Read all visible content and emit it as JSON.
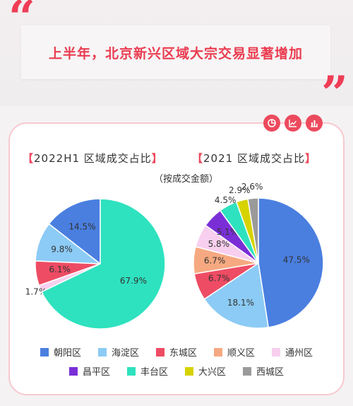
{
  "headline": "上半年，北京新兴区域大宗交易显著增加",
  "quote_open": "“",
  "quote_close": "”",
  "toolbar": {
    "icons": [
      "pie-chart-icon",
      "line-chart-icon",
      "bar-chart-icon"
    ]
  },
  "left_chart_title": "2022H1 区域成交占比",
  "left_chart_subtitle": "（按成交金额）",
  "right_chart_title": "2021 区域成交占比",
  "bracket_open": "【",
  "bracket_close": "】",
  "colors": {
    "朝阳区": "#4a7fe0",
    "海淀区": "#8ccbf5",
    "东城区": "#ee4c64",
    "顺义区": "#f6a981",
    "通州区": "#f8cfee",
    "昌平区": "#7a2fd6",
    "丰台区": "#2ee2bf",
    "大兴区": "#d7d300",
    "西城区": "#9a9a9a"
  },
  "chart_data": [
    {
      "type": "pie",
      "title": "2022H1 区域成交占比",
      "subtitle": "（按成交金额）",
      "unit": "%",
      "slices": [
        {
          "name": "朝阳区",
          "value": 14.5,
          "label": "14.5%"
        },
        {
          "name": "海淀区",
          "value": 9.8,
          "label": "9.8%"
        },
        {
          "name": "东城区",
          "value": 6.1,
          "label": "6.1%"
        },
        {
          "name": "通州区",
          "value": 1.7,
          "label": "1.7%"
        },
        {
          "name": "丰台区",
          "value": 67.9,
          "label": "67.9%"
        }
      ]
    },
    {
      "type": "pie",
      "title": "2021 区域成交占比",
      "unit": "%",
      "slices": [
        {
          "name": "朝阳区",
          "value": 47.5,
          "label": "47.5%"
        },
        {
          "name": "海淀区",
          "value": 18.1,
          "label": "18.1%"
        },
        {
          "name": "东城区",
          "value": 6.7,
          "label": "6.7%"
        },
        {
          "name": "顺义区",
          "value": 6.7,
          "label": "6.7%"
        },
        {
          "name": "通州区",
          "value": 5.8,
          "label": "5.8%"
        },
        {
          "name": "昌平区",
          "value": 5.1,
          "label": "5.1%"
        },
        {
          "name": "丰台区",
          "value": 4.5,
          "label": "4.5%"
        },
        {
          "name": "大兴区",
          "value": 2.9,
          "label": "2.9%"
        },
        {
          "name": "西城区",
          "value": 2.6,
          "label": "2.6%"
        }
      ]
    }
  ],
  "legend": {
    "row1": [
      "朝阳区",
      "海淀区",
      "东城区",
      "顺义区",
      "通州区"
    ],
    "row2": [
      "昌平区",
      "丰台区",
      "大兴区",
      "西城区"
    ]
  }
}
